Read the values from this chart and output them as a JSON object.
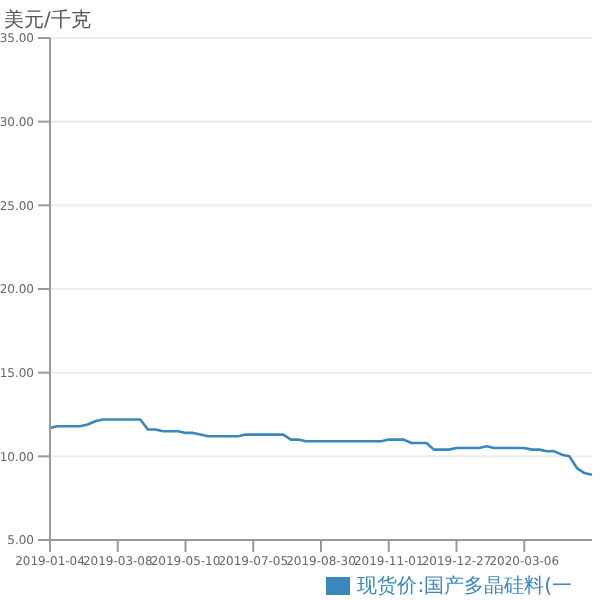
{
  "chart_data": {
    "type": "line",
    "ylabel": "美元/千克",
    "categories": [
      "2019-01-04",
      null,
      null,
      null,
      null,
      null,
      null,
      null,
      null,
      "2019-03-08",
      null,
      null,
      null,
      null,
      null,
      null,
      null,
      null,
      "2019-05-10",
      null,
      null,
      null,
      null,
      null,
      null,
      null,
      null,
      "2019-07-05",
      null,
      null,
      null,
      null,
      null,
      null,
      null,
      null,
      "2019-08-30",
      null,
      null,
      null,
      null,
      null,
      null,
      null,
      null,
      "2019-11-01",
      null,
      null,
      null,
      null,
      null,
      null,
      null,
      null,
      "2019-12-27",
      null,
      null,
      null,
      null,
      null,
      null,
      null,
      null,
      "2020-03-06",
      null,
      null,
      null,
      null,
      null,
      null,
      null,
      null,
      null
    ],
    "series": [
      {
        "name": "现货价:国产多晶硅料(一",
        "color": "#3a87bd",
        "values": [
          11.7,
          11.8,
          11.8,
          11.8,
          11.8,
          11.9,
          12.1,
          12.2,
          12.2,
          12.2,
          12.2,
          12.2,
          12.2,
          11.6,
          11.6,
          11.5,
          11.5,
          11.5,
          11.4,
          11.4,
          11.3,
          11.2,
          11.2,
          11.2,
          11.2,
          11.2,
          11.3,
          11.3,
          11.3,
          11.3,
          11.3,
          11.3,
          11.0,
          11.0,
          10.9,
          10.9,
          10.9,
          10.9,
          10.9,
          10.9,
          10.9,
          10.9,
          10.9,
          10.9,
          10.9,
          11.0,
          11.0,
          11.0,
          10.8,
          10.8,
          10.8,
          10.4,
          10.4,
          10.4,
          10.5,
          10.5,
          10.5,
          10.5,
          10.6,
          10.5,
          10.5,
          10.5,
          10.5,
          10.5,
          10.4,
          10.4,
          10.3,
          10.3,
          10.1,
          10.0,
          9.3,
          9.0,
          8.9
        ]
      }
    ],
    "ylim": [
      5,
      35
    ],
    "yticks": [
      {
        "value": 5,
        "label": "5.00"
      },
      {
        "value": 10,
        "label": "10.00"
      },
      {
        "value": 15,
        "label": "15.00"
      },
      {
        "value": 20,
        "label": "20.00"
      },
      {
        "value": 25,
        "label": "25.00"
      },
      {
        "value": 30,
        "label": "30.00"
      },
      {
        "value": 35,
        "label": "35.00"
      }
    ],
    "grid": "y",
    "legend": "bottom right",
    "marker": "none",
    "line_style": "solid"
  }
}
